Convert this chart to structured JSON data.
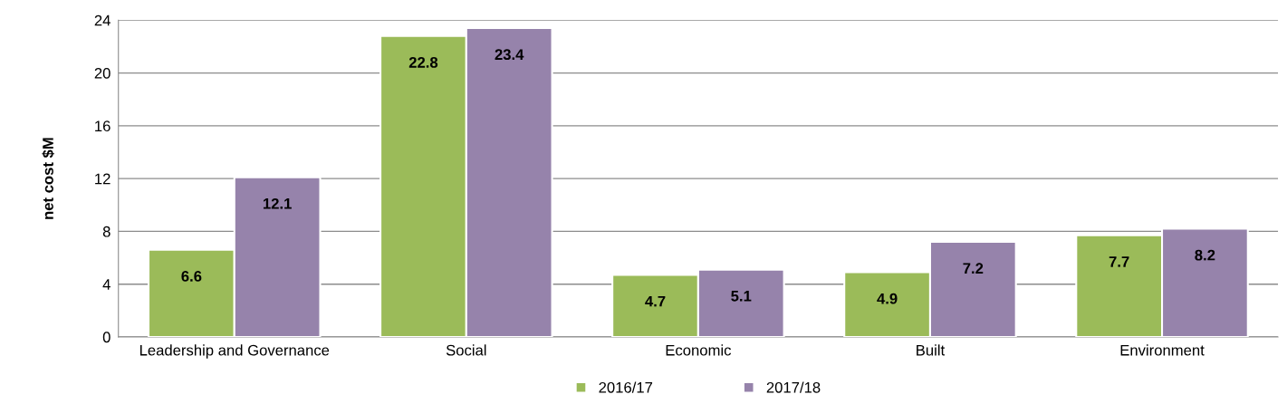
{
  "chart_data": {
    "type": "bar",
    "ylabel": "net cost $M",
    "categories": [
      "Leadership and Governance",
      "Social",
      "Economic",
      "Built",
      "Environment"
    ],
    "series": [
      {
        "name": "2016/17",
        "color": "#9bbb59",
        "values": [
          6.6,
          22.8,
          4.7,
          4.9,
          7.7
        ]
      },
      {
        "name": "2017/18",
        "color": "#9683ab",
        "values": [
          12.1,
          23.4,
          5.1,
          7.2,
          8.2
        ]
      }
    ],
    "ylim": [
      0,
      24
    ],
    "yticks": [
      0,
      4,
      8,
      12,
      16,
      20,
      24
    ],
    "grid": "y",
    "legend": "bottom",
    "data_labels": true
  }
}
